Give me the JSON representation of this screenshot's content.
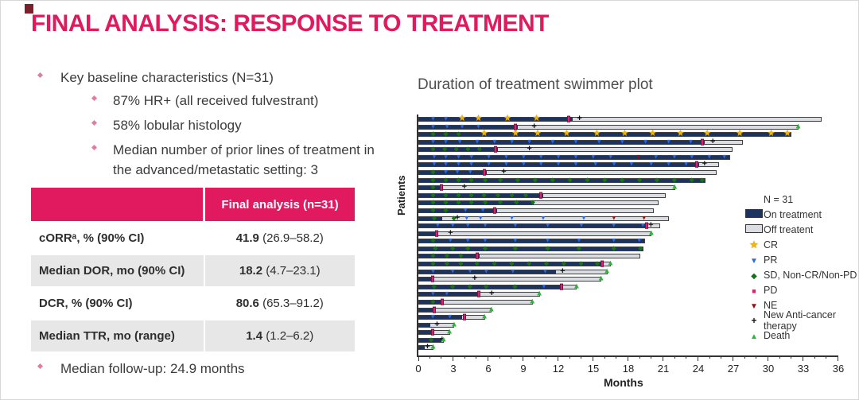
{
  "slide": {
    "title": "FINAL ANALYSIS: RESPONSE TO TREATMENT"
  },
  "bullets": {
    "main": "Key baseline characteristics (N=31)",
    "sub": [
      "87% HR+ (all received fulvestrant)",
      "58% lobular histology",
      "Median number of prior lines of treatment in the advanced/metastatic setting: 3"
    ],
    "footer": "Median follow-up: 24.9 months"
  },
  "table": {
    "header": "Final analysis (n=31)",
    "rows": [
      {
        "label": "cORRᵃ, % (90% CI)",
        "value_bold": "41.9",
        "value_rest": " (26.9–58.2)"
      },
      {
        "label": "Median DOR, mo (90% CI)",
        "value_bold": "18.2",
        "value_rest": " (4.7–23.1)"
      },
      {
        "label": "DCR, % (90% CI)",
        "value_bold": "80.6",
        "value_rest": " (65.3–91.2)"
      },
      {
        "label": "Median TTR, mo (range)",
        "value_bold": "1.4",
        "value_rest": " (1.2–6.2)"
      }
    ]
  },
  "chart_data": {
    "type": "swimmer-bar",
    "title": "Duration of treatment swimmer plot",
    "xlabel": "Months",
    "ylabel": "Patients",
    "xlim": [
      0,
      36
    ],
    "xtick_step_major": 3,
    "xtick_step_minor": 1,
    "n_patients": 31,
    "colors": {
      "on_treatment": "#1c3360",
      "off_treatment": "#dadde2",
      "cr": "#f2b705",
      "pr": "#2e6adf",
      "sd": "#187318",
      "pd": "#d6246f",
      "ne": "#8e1212",
      "new_tx": "#111111",
      "death": "#2fb53b",
      "accent_pink": "#e1195e"
    },
    "legend": {
      "n_label": "N = 31",
      "items": [
        {
          "symbol": "rect-navy",
          "label": "On treatment"
        },
        {
          "symbol": "rect-gray",
          "label": "Off treatent"
        },
        {
          "symbol": "star-gold",
          "label": "CR"
        },
        {
          "symbol": "tri-down-blue",
          "label": "PR"
        },
        {
          "symbol": "diamond-green",
          "label": "SD, Non-CR/Non-PD"
        },
        {
          "symbol": "square-magenta",
          "label": "PD"
        },
        {
          "symbol": "tri-down-darkred",
          "label": "NE"
        },
        {
          "symbol": "plus-black",
          "label": "New Anti-cancer therapy"
        },
        {
          "symbol": "tri-up-green",
          "label": "Death"
        }
      ]
    },
    "marker_types": {
      "CR": "star",
      "PR": "tri-down",
      "SD": "diamond",
      "PD": "square",
      "NE": "tri-down",
      "NT": "plus",
      "D": "tri-up"
    },
    "patients": [
      {
        "on": 13.2,
        "total": 34.6,
        "end": "none",
        "markers": [
          [
            1.2,
            "PR"
          ],
          [
            2.3,
            "PR"
          ],
          [
            3.7,
            "CR"
          ],
          [
            5.1,
            "CR"
          ],
          [
            7.6,
            "CR"
          ],
          [
            10.1,
            "CR"
          ],
          [
            12.9,
            "PD"
          ],
          [
            13.8,
            "NT"
          ]
        ]
      },
      {
        "on": 8.5,
        "total": 32.6,
        "end": "death",
        "markers": [
          [
            1.2,
            "PR"
          ],
          [
            2.4,
            "PR"
          ],
          [
            3.7,
            "PR"
          ],
          [
            5.1,
            "PR"
          ],
          [
            8.3,
            "PD"
          ],
          [
            9.9,
            "NT"
          ]
        ]
      },
      {
        "on": 32.0,
        "total": 32.0,
        "end": "none",
        "markers": [
          [
            1.2,
            "SD"
          ],
          [
            2.3,
            "SD"
          ],
          [
            3.4,
            "SD"
          ],
          [
            5.6,
            "CR"
          ],
          [
            8.3,
            "CR"
          ],
          [
            10.2,
            "CR"
          ],
          [
            12.7,
            "CR"
          ],
          [
            15.3,
            "CR"
          ],
          [
            17.7,
            "CR"
          ],
          [
            20.1,
            "CR"
          ],
          [
            22.5,
            "CR"
          ],
          [
            24.8,
            "CR"
          ],
          [
            27.6,
            "CR"
          ],
          [
            30.3,
            "CR"
          ],
          [
            31.7,
            "CR"
          ]
        ]
      },
      {
        "on": 24.6,
        "total": 27.8,
        "end": "none",
        "markers": [
          [
            1.2,
            "PR"
          ],
          [
            2.3,
            "PR"
          ],
          [
            3.5,
            "PR"
          ],
          [
            5.0,
            "PR"
          ],
          [
            6.5,
            "PR"
          ],
          [
            8.0,
            "PR"
          ],
          [
            9.5,
            "PR"
          ],
          [
            11.5,
            "PR"
          ],
          [
            13.5,
            "PR"
          ],
          [
            15.5,
            "PR"
          ],
          [
            17.5,
            "PR"
          ],
          [
            19.5,
            "PR"
          ],
          [
            21.5,
            "PR"
          ],
          [
            23.4,
            "PR"
          ],
          [
            24.4,
            "PD"
          ],
          [
            25.3,
            "NT"
          ]
        ]
      },
      {
        "on": 6.8,
        "total": 26.9,
        "end": "none",
        "markers": [
          [
            1.2,
            "SD"
          ],
          [
            2.2,
            "SD"
          ],
          [
            3.2,
            "SD"
          ],
          [
            4.2,
            "SD"
          ],
          [
            5.2,
            "SD"
          ],
          [
            6.6,
            "PD"
          ],
          [
            9.5,
            "NT"
          ]
        ]
      },
      {
        "on": 26.7,
        "total": 26.7,
        "end": "none",
        "markers": [
          [
            1.3,
            "PR"
          ],
          [
            2.3,
            "PR"
          ],
          [
            3.4,
            "PR"
          ],
          [
            4.5,
            "PR"
          ],
          [
            6.0,
            "PR"
          ],
          [
            7.5,
            "PR"
          ],
          [
            9.0,
            "PR"
          ],
          [
            10.5,
            "PR"
          ],
          [
            12.0,
            "PR"
          ],
          [
            13.5,
            "PR"
          ],
          [
            15.0,
            "PR"
          ],
          [
            16.5,
            "PR"
          ],
          [
            18.9,
            "NE"
          ],
          [
            20.4,
            "PR"
          ],
          [
            22.0,
            "PR"
          ],
          [
            23.5,
            "PR"
          ],
          [
            25.0,
            "PR"
          ],
          [
            26.3,
            "PR"
          ]
        ]
      },
      {
        "on": 24.1,
        "total": 25.8,
        "end": "none",
        "markers": [
          [
            1.3,
            "PR"
          ],
          [
            2.3,
            "PR"
          ],
          [
            3.4,
            "PR"
          ],
          [
            4.5,
            "PR"
          ],
          [
            6.0,
            "PR"
          ],
          [
            7.5,
            "PR"
          ],
          [
            9.0,
            "PR"
          ],
          [
            10.5,
            "PR"
          ],
          [
            12.0,
            "PR"
          ],
          [
            13.5,
            "PR"
          ],
          [
            15.2,
            "PR"
          ],
          [
            16.8,
            "PR"
          ],
          [
            18.3,
            "PR"
          ],
          [
            20.0,
            "PR"
          ],
          [
            21.5,
            "PR"
          ],
          [
            23.0,
            "PR"
          ],
          [
            23.9,
            "PD"
          ],
          [
            24.6,
            "NT"
          ]
        ]
      },
      {
        "on": 5.8,
        "total": 25.6,
        "end": "none",
        "markers": [
          [
            1.2,
            "SD"
          ],
          [
            2.3,
            "PR"
          ],
          [
            3.3,
            "PR"
          ],
          [
            4.4,
            "PR"
          ],
          [
            5.6,
            "PD"
          ],
          [
            7.3,
            "NT"
          ]
        ]
      },
      {
        "on": 24.6,
        "total": 24.6,
        "end": "none",
        "markers": [
          [
            1.2,
            "SD"
          ],
          [
            2.3,
            "SD"
          ],
          [
            3.4,
            "SD"
          ],
          [
            4.5,
            "SD"
          ],
          [
            5.7,
            "SD"
          ],
          [
            7.0,
            "SD"
          ],
          [
            8.5,
            "SD"
          ],
          [
            10.0,
            "SD"
          ],
          [
            11.5,
            "SD"
          ],
          [
            13.0,
            "SD"
          ],
          [
            14.5,
            "SD"
          ],
          [
            16.0,
            "SD"
          ],
          [
            17.5,
            "SD"
          ],
          [
            19.0,
            "SD"
          ],
          [
            20.5,
            "SD"
          ],
          [
            22.0,
            "SD"
          ],
          [
            23.5,
            "SD"
          ],
          [
            24.4,
            "SD"
          ]
        ]
      },
      {
        "on": 2.0,
        "total": 22.0,
        "end": "death",
        "markers": [
          [
            1.2,
            "SD"
          ],
          [
            1.9,
            "PD"
          ],
          [
            3.9,
            "NT"
          ]
        ]
      },
      {
        "on": 10.7,
        "total": 21.2,
        "end": "none",
        "markers": [
          [
            1.2,
            "SD"
          ],
          [
            2.3,
            "SD"
          ],
          [
            3.4,
            "SD"
          ],
          [
            4.5,
            "SD"
          ],
          [
            5.6,
            "SD"
          ],
          [
            6.8,
            "SD"
          ],
          [
            8.0,
            "SD"
          ],
          [
            9.2,
            "SD"
          ],
          [
            10.5,
            "PD"
          ]
        ]
      },
      {
        "on": 9.9,
        "total": 20.6,
        "end": "none",
        "markers": [
          [
            1.2,
            "SD"
          ],
          [
            2.3,
            "SD"
          ],
          [
            3.4,
            "SD"
          ],
          [
            4.5,
            "SD"
          ],
          [
            5.7,
            "SD"
          ],
          [
            7.0,
            "SD"
          ],
          [
            8.4,
            "SD"
          ],
          [
            9.8,
            "SD"
          ]
        ]
      },
      {
        "on": 6.7,
        "total": 20.2,
        "end": "none",
        "markers": [
          [
            1.2,
            "SD"
          ],
          [
            2.3,
            "SD"
          ],
          [
            4.0,
            "PR"
          ],
          [
            5.5,
            "PR"
          ],
          [
            6.5,
            "PD"
          ]
        ]
      },
      {
        "on": 2.0,
        "total": 21.5,
        "end": "none",
        "markers": [
          [
            1.3,
            "SD"
          ],
          [
            3.0,
            "SD"
          ],
          [
            3.3,
            "NT"
          ],
          [
            4.1,
            "PR"
          ],
          [
            5.3,
            "PR"
          ],
          [
            8.0,
            "PR"
          ],
          [
            10.7,
            "PR"
          ],
          [
            14.2,
            "PR"
          ],
          [
            16.8,
            "NE"
          ],
          [
            19.4,
            "NE"
          ]
        ]
      },
      {
        "on": 19.6,
        "total": 20.7,
        "end": "none",
        "markers": [
          [
            1.6,
            "PR"
          ],
          [
            2.9,
            "PR"
          ],
          [
            4.2,
            "PR"
          ],
          [
            5.7,
            "PR"
          ],
          [
            8.3,
            "PR"
          ],
          [
            11.1,
            "PR"
          ],
          [
            14.0,
            "PR"
          ],
          [
            16.8,
            "PR"
          ],
          [
            19.3,
            "PR"
          ],
          [
            19.6,
            "PD"
          ],
          [
            20.0,
            "NT"
          ]
        ]
      },
      {
        "on": 1.4,
        "total": 20.0,
        "end": "death",
        "markers": [
          [
            1.5,
            "PD"
          ],
          [
            2.7,
            "NT"
          ]
        ]
      },
      {
        "on": 19.4,
        "total": 19.4,
        "end": "none",
        "markers": [
          [
            1.2,
            "SD"
          ],
          [
            2.7,
            "PR"
          ],
          [
            4.2,
            "PR"
          ],
          [
            5.7,
            "PR"
          ],
          [
            8.3,
            "PR"
          ],
          [
            11.1,
            "PR"
          ],
          [
            13.8,
            "PR"
          ],
          [
            16.8,
            "PR"
          ],
          [
            19.0,
            "PR"
          ]
        ]
      },
      {
        "on": 19.3,
        "total": 19.3,
        "end": "none",
        "markers": [
          [
            1.4,
            "SD"
          ],
          [
            2.9,
            "SD"
          ],
          [
            4.2,
            "SD"
          ],
          [
            5.7,
            "SD"
          ],
          [
            8.3,
            "SD"
          ],
          [
            11.1,
            "SD"
          ],
          [
            13.8,
            "SD"
          ],
          [
            16.8,
            "SD"
          ],
          [
            19.1,
            "SD"
          ]
        ]
      },
      {
        "on": 5.2,
        "total": 19.0,
        "end": "none",
        "markers": [
          [
            1.2,
            "SD"
          ],
          [
            2.4,
            "SD"
          ],
          [
            3.6,
            "SD"
          ],
          [
            5.0,
            "PD"
          ]
        ]
      },
      {
        "on": 15.9,
        "total": 16.5,
        "end": "death",
        "markers": [
          [
            1.2,
            "SD"
          ],
          [
            2.4,
            "SD"
          ],
          [
            3.6,
            "SD"
          ],
          [
            5.0,
            "SD"
          ],
          [
            6.5,
            "SD"
          ],
          [
            8.0,
            "SD"
          ],
          [
            9.5,
            "SD"
          ],
          [
            11.0,
            "SD"
          ],
          [
            12.5,
            "SD"
          ],
          [
            14.0,
            "SD"
          ],
          [
            15.4,
            "SD"
          ],
          [
            15.8,
            "PD"
          ]
        ]
      },
      {
        "on": 11.8,
        "total": 16.2,
        "end": "death",
        "markers": [
          [
            1.2,
            "PR"
          ],
          [
            2.9,
            "PR"
          ],
          [
            4.4,
            "PR"
          ],
          [
            5.8,
            "PR"
          ],
          [
            8.1,
            "PR"
          ],
          [
            10.9,
            "PR"
          ],
          [
            12.4,
            "NT"
          ]
        ]
      },
      {
        "on": 1.2,
        "total": 15.7,
        "end": "death",
        "markers": [
          [
            1.2,
            "PD"
          ],
          [
            4.8,
            "NT"
          ]
        ]
      },
      {
        "on": 12.2,
        "total": 13.6,
        "end": "death",
        "markers": [
          [
            1.3,
            "SD"
          ],
          [
            2.9,
            "SD"
          ],
          [
            4.4,
            "SD"
          ],
          [
            5.8,
            "SD"
          ],
          [
            8.3,
            "SD"
          ],
          [
            10.8,
            "PR"
          ],
          [
            12.3,
            "PD"
          ]
        ]
      },
      {
        "on": 5.1,
        "total": 10.4,
        "end": "death",
        "markers": [
          [
            1.2,
            "PR"
          ],
          [
            2.4,
            "PR"
          ],
          [
            5.2,
            "PD"
          ],
          [
            6.3,
            "NT"
          ]
        ]
      },
      {
        "on": 1.9,
        "total": 9.8,
        "end": "death",
        "markers": [
          [
            1.2,
            "SD"
          ],
          [
            2.0,
            "PD"
          ]
        ]
      },
      {
        "on": 1.3,
        "total": 6.3,
        "end": "death",
        "markers": [
          [
            1.3,
            "PD"
          ]
        ]
      },
      {
        "on": 3.8,
        "total": 5.7,
        "end": "death",
        "markers": [
          [
            1.2,
            "PR"
          ],
          [
            2.7,
            "PR"
          ],
          [
            4.0,
            "PD"
          ]
        ]
      },
      {
        "on": 1.0,
        "total": 3.1,
        "end": "death",
        "markers": [
          [
            1.6,
            "NT"
          ]
        ]
      },
      {
        "on": 1.2,
        "total": 2.7,
        "end": "death",
        "markers": [
          [
            1.2,
            "PD"
          ]
        ]
      },
      {
        "on": 2.0,
        "total": 2.2,
        "end": "death",
        "markers": [
          [
            1.1,
            "SD"
          ],
          [
            2.1,
            "NT"
          ]
        ]
      },
      {
        "on": 0.5,
        "total": 1.3,
        "end": "death",
        "markers": [
          [
            0.8,
            "NT"
          ]
        ]
      }
    ]
  }
}
